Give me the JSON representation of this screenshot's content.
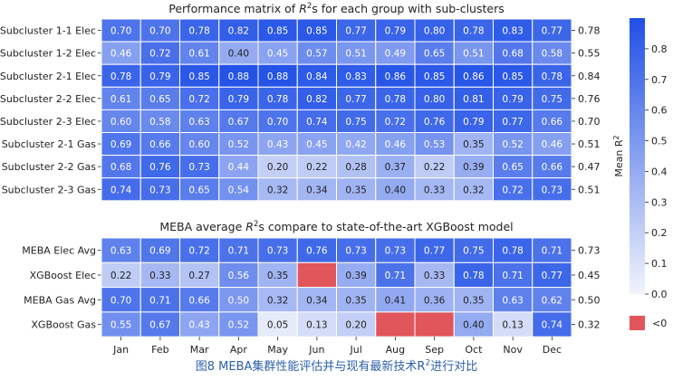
{
  "chart_data": [
    {
      "type": "heatmap",
      "title_prefix": "Performance matrix of ",
      "title_suffix": "s for each group with sub-clusters",
      "categories": [
        "Jan",
        "Feb",
        "Mar",
        "Apr",
        "May",
        "Jun",
        "Jul",
        "Aug",
        "Sep",
        "Oct",
        "Nov",
        "Dec"
      ],
      "rows": [
        "Subcluster 1-1 Elec",
        "Subcluster 1-2 Elec",
        "Subcluster 2-1 Elec",
        "Subcluster 2-2 Elec",
        "Subcluster 2-3 Elec",
        "Subcluster 2-1 Gas",
        "Subcluster 2-2 Gas",
        "Subcluster 2-3 Gas"
      ],
      "values": [
        [
          0.7,
          0.7,
          0.78,
          0.82,
          0.85,
          0.85,
          0.77,
          0.79,
          0.8,
          0.78,
          0.83,
          0.77
        ],
        [
          0.46,
          0.72,
          0.61,
          0.4,
          0.45,
          0.57,
          0.51,
          0.49,
          0.65,
          0.51,
          0.68,
          0.58
        ],
        [
          0.78,
          0.79,
          0.85,
          0.88,
          0.88,
          0.84,
          0.83,
          0.86,
          0.85,
          0.86,
          0.85,
          0.78
        ],
        [
          0.61,
          0.65,
          0.72,
          0.79,
          0.78,
          0.82,
          0.77,
          0.78,
          0.8,
          0.81,
          0.79,
          0.75
        ],
        [
          0.6,
          0.58,
          0.63,
          0.67,
          0.7,
          0.74,
          0.75,
          0.72,
          0.76,
          0.79,
          0.77,
          0.66
        ],
        [
          0.69,
          0.66,
          0.6,
          0.52,
          0.43,
          0.45,
          0.42,
          0.46,
          0.53,
          0.35,
          0.52,
          0.46
        ],
        [
          0.68,
          0.76,
          0.73,
          0.44,
          0.2,
          0.22,
          0.28,
          0.37,
          0.22,
          0.39,
          0.65,
          0.66
        ],
        [
          0.74,
          0.73,
          0.65,
          0.54,
          0.32,
          0.34,
          0.35,
          0.4,
          0.33,
          0.32,
          0.72,
          0.73
        ]
      ],
      "row_means": [
        "0.78",
        "0.55",
        "0.84",
        "0.76",
        "0.70",
        "0.51",
        "0.47",
        "0.51"
      ]
    },
    {
      "type": "heatmap",
      "title_prefix": "MEBA average ",
      "title_suffix": "s compare to state-of-the-art XGBoost model",
      "categories": [
        "Jan",
        "Feb",
        "Mar",
        "Apr",
        "May",
        "Jun",
        "Jul",
        "Aug",
        "Sep",
        "Oct",
        "Nov",
        "Dec"
      ],
      "rows": [
        "MEBA Elec Avg",
        "XGBoost Elec",
        "MEBA Gas Avg",
        "XGBoost Gas"
      ],
      "values": [
        [
          0.63,
          0.69,
          0.72,
          0.71,
          0.73,
          0.76,
          0.73,
          0.73,
          0.77,
          0.75,
          0.78,
          0.71
        ],
        [
          0.22,
          0.33,
          0.27,
          0.56,
          0.35,
          null,
          0.39,
          0.71,
          0.33,
          0.78,
          0.71,
          0.77
        ],
        [
          0.7,
          0.71,
          0.66,
          0.5,
          0.32,
          0.34,
          0.35,
          0.41,
          0.36,
          0.35,
          0.63,
          0.62
        ],
        [
          0.55,
          0.67,
          0.43,
          0.52,
          0.05,
          0.13,
          0.2,
          null,
          null,
          0.4,
          0.13,
          0.74
        ]
      ],
      "negative_cells": [
        [
          1,
          5
        ],
        [
          3,
          7
        ],
        [
          3,
          8
        ]
      ],
      "row_means": [
        "0.73",
        "0.45",
        "0.50",
        "0.32"
      ]
    }
  ],
  "colorbar": {
    "label": "Mean R",
    "label_sup": "2",
    "ticks": [
      "0.0",
      "0.1",
      "0.2",
      "0.3",
      "0.4",
      "0.5",
      "0.6",
      "0.7",
      "0.8"
    ],
    "vmin": 0.0,
    "vmax": 0.9,
    "negative_label": "<0",
    "negative_color": "#e0565a",
    "low_color": "#f2f4fb",
    "high_color": "#1f4fe6"
  },
  "r_symbol": "R",
  "r_sup": "2",
  "caption": {
    "text": "图8 MEBA集群性能评估并与现有最新技术R",
    "sup": "2",
    "tail": "进行对比"
  }
}
